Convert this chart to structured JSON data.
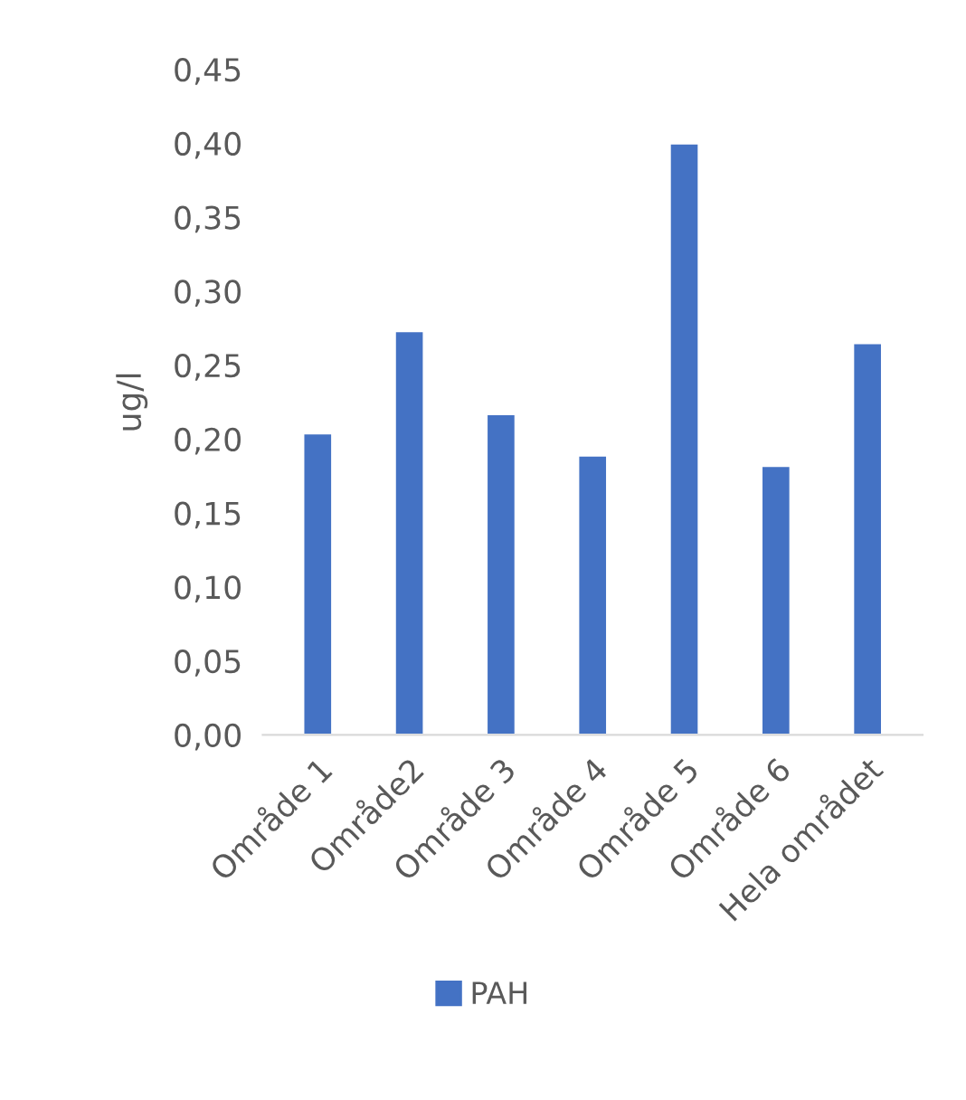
{
  "chart_data": {
    "type": "bar",
    "ylabel": "ug/l",
    "categories": [
      "Område 1",
      "Område2",
      "Område 3",
      "Område 4",
      "Område 5",
      "Område 6",
      "Hela området"
    ],
    "series": [
      {
        "name": "PAH",
        "color": "#4472c4",
        "values": [
          0.204,
          0.273,
          0.217,
          0.189,
          0.4,
          0.182,
          0.265
        ]
      }
    ],
    "ylim": [
      0,
      0.45
    ],
    "yticks": [
      {
        "value": 0,
        "label": "0,00"
      },
      {
        "value": 0.05,
        "label": "0,05"
      },
      {
        "value": 0.1,
        "label": "0,10"
      },
      {
        "value": 0.15,
        "label": "0,15"
      },
      {
        "value": 0.2,
        "label": "0,20"
      },
      {
        "value": 0.25,
        "label": "0,25"
      },
      {
        "value": 0.3,
        "label": "0,30"
      },
      {
        "value": 0.35,
        "label": "0,35"
      },
      {
        "value": 0.4,
        "label": "0,40"
      },
      {
        "value": 0.45,
        "label": "0,45"
      }
    ],
    "grid": false,
    "legend": "bottom"
  }
}
